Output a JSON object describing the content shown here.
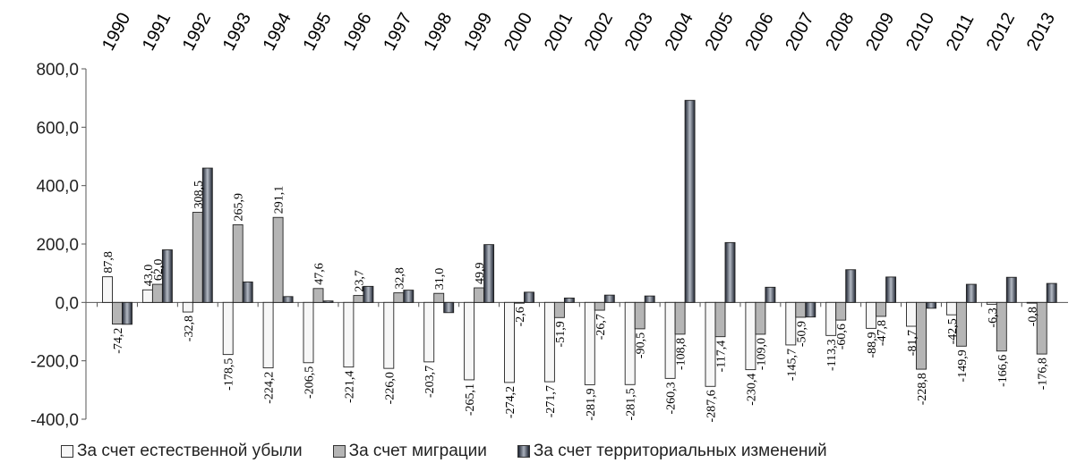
{
  "chart_data": {
    "type": "bar",
    "categories": [
      "1990",
      "1991",
      "1992",
      "1993",
      "1994",
      "1995",
      "1996",
      "1997",
      "1998",
      "1999",
      "2000",
      "2001",
      "2002",
      "2003",
      "2004",
      "2005",
      "2006",
      "2007",
      "2008",
      "2009",
      "2010",
      "2011",
      "2012",
      "2013"
    ],
    "series": [
      {
        "name": "За счет естественной убыли",
        "values": [
          87.8,
          43.0,
          -32.8,
          -178.5,
          -224.2,
          -206.5,
          -221.4,
          -226.0,
          -203.7,
          -265.1,
          -274.2,
          -271.7,
          -281.9,
          -281.5,
          -260.3,
          -287.6,
          -230.4,
          -145.7,
          -113.3,
          -88.9,
          -81.7,
          -42.5,
          -6.3,
          -0.8
        ],
        "labels": [
          "87,8",
          "43,0",
          "-32,8",
          "-178,5",
          "-224,2",
          "-206,5",
          "-221,4",
          "-226,0",
          "-203,7",
          "-265,1",
          "-274,2",
          "-271,7",
          "-281,9",
          "-281,5",
          "-260,3",
          "-287,6",
          "-230,4",
          "-145,7",
          "-113,3",
          "-88,9",
          "-81,7",
          "-42,5",
          "-6,3",
          "-0,8"
        ],
        "color": "#f7f7f7"
      },
      {
        "name": "За счет миграции",
        "values": [
          -74.2,
          62.0,
          308.5,
          265.9,
          291.1,
          47.6,
          23.7,
          32.8,
          31.0,
          49.9,
          -2.6,
          -51.9,
          -26.7,
          -90.5,
          -108.8,
          -117.4,
          -109.0,
          -50.9,
          -60.6,
          -47.8,
          -228.8,
          -149.9,
          -166.6,
          -176.8
        ],
        "labels": [
          "-74,2",
          "62,0",
          "308,5",
          "265,9",
          "291,1",
          "47,6",
          "23,7",
          "32,8",
          "31,0",
          "49,9",
          "-2,6",
          "-51,9",
          "-26,7",
          "-90,5",
          "-108,8",
          "-117,4",
          "-109,0",
          "-50,9",
          "-60,6",
          "-47,8",
          "-228,8",
          "-149,9",
          "-166,6",
          "-176,8"
        ],
        "color": "#b5b5b5"
      },
      {
        "name": "За счет территориальных изменений",
        "values": [
          -75,
          180,
          460,
          70,
          20,
          5,
          55,
          42,
          -35,
          198,
          35,
          15,
          25,
          22,
          692,
          205,
          52,
          -50,
          112,
          87,
          -20,
          62,
          86,
          65
        ],
        "color": "#6f7886"
      }
    ],
    "yticks": [
      "800,0",
      "600,0",
      "400,0",
      "200,0",
      "0,0",
      "-200,0",
      "-400,0"
    ],
    "ylim": [
      -400,
      800
    ],
    "legend_position": "bottom"
  }
}
